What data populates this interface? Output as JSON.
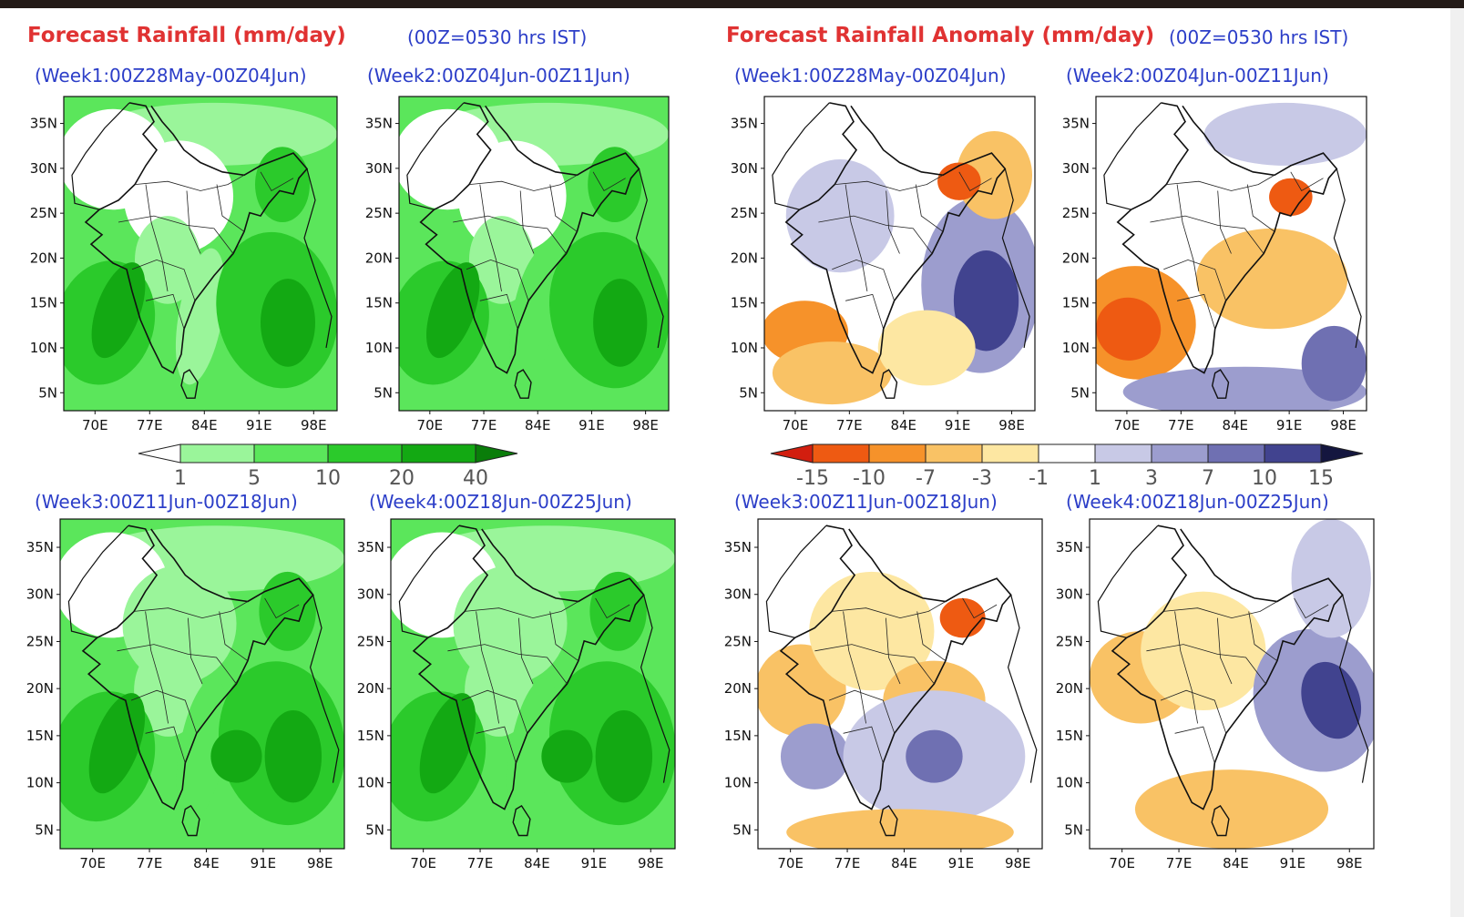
{
  "left_title": "Forecast Rainfall (mm/day)",
  "left_note": "(00Z=0530 hrs IST)",
  "right_title": "Forecast Rainfall Anomaly (mm/day)",
  "right_note": "(00Z=0530 hrs IST)",
  "lat_labels": [
    "35N",
    "30N",
    "25N",
    "20N",
    "15N",
    "10N",
    "5N"
  ],
  "lon_labels": [
    "70E",
    "77E",
    "84E",
    "91E",
    "98E"
  ],
  "rain_panels": [
    {
      "title": "(Week1:00Z28May-00Z04Jun)"
    },
    {
      "title": "(Week2:00Z04Jun-00Z11Jun)"
    },
    {
      "title": "(Week3:00Z11Jun-00Z18Jun)"
    },
    {
      "title": "(Week4:00Z18Jun-00Z25Jun)"
    }
  ],
  "anom_panels": [
    {
      "title": "(Week1:00Z28May-00Z04Jun)"
    },
    {
      "title": "(Week2:00Z04Jun-00Z11Jun)"
    },
    {
      "title": "(Week3:00Z11Jun-00Z18Jun)"
    },
    {
      "title": "(Week4:00Z18Jun-00Z25Jun)"
    }
  ],
  "rain_colorbar": {
    "labels": [
      "1",
      "5",
      "10",
      "20",
      "40"
    ],
    "colors": [
      "#ffffff",
      "#9af59a",
      "#5be65b",
      "#2bca2b",
      "#13a913",
      "#0a7d0a"
    ]
  },
  "anom_colorbar": {
    "labels": [
      "-15",
      "-10",
      "-7",
      "-3",
      "-1",
      "1",
      "3",
      "7",
      "10",
      "15"
    ],
    "colors": [
      "#d21e0f",
      "#ee5a12",
      "#f6922a",
      "#f9c265",
      "#fde7a2",
      "#ffffff",
      "#c8c9e6",
      "#9c9dce",
      "#6f70b2",
      "#41438f",
      "#14163f"
    ]
  }
}
